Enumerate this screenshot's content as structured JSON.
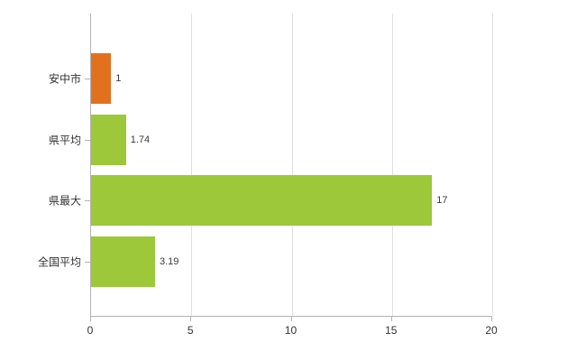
{
  "chart_data": {
    "type": "bar",
    "orientation": "horizontal",
    "title": "",
    "xlabel": "",
    "ylabel": "",
    "categories": [
      "安中市",
      "県平均",
      "県最大",
      "全国平均"
    ],
    "values": [
      1,
      1.74,
      17,
      3.19
    ],
    "value_labels": [
      "1",
      "1.74",
      "17",
      "3.19"
    ],
    "bar_colors": [
      "#e2711d",
      "#9cc83a",
      "#9cc83a",
      "#9cc83a"
    ],
    "xlim": [
      0,
      20
    ],
    "x_ticks": [
      0,
      5,
      10,
      15,
      20
    ],
    "x_tick_labels": [
      "0",
      "5",
      "10",
      "15",
      "20"
    ],
    "grid": "vertical",
    "legend": "none",
    "colors": {
      "accent_orange": "#e2711d",
      "accent_green": "#9cc83a",
      "grid": "#e0e0e0",
      "axis": "#b3b3b3",
      "text": "#333333",
      "background": "#ffffff"
    }
  }
}
